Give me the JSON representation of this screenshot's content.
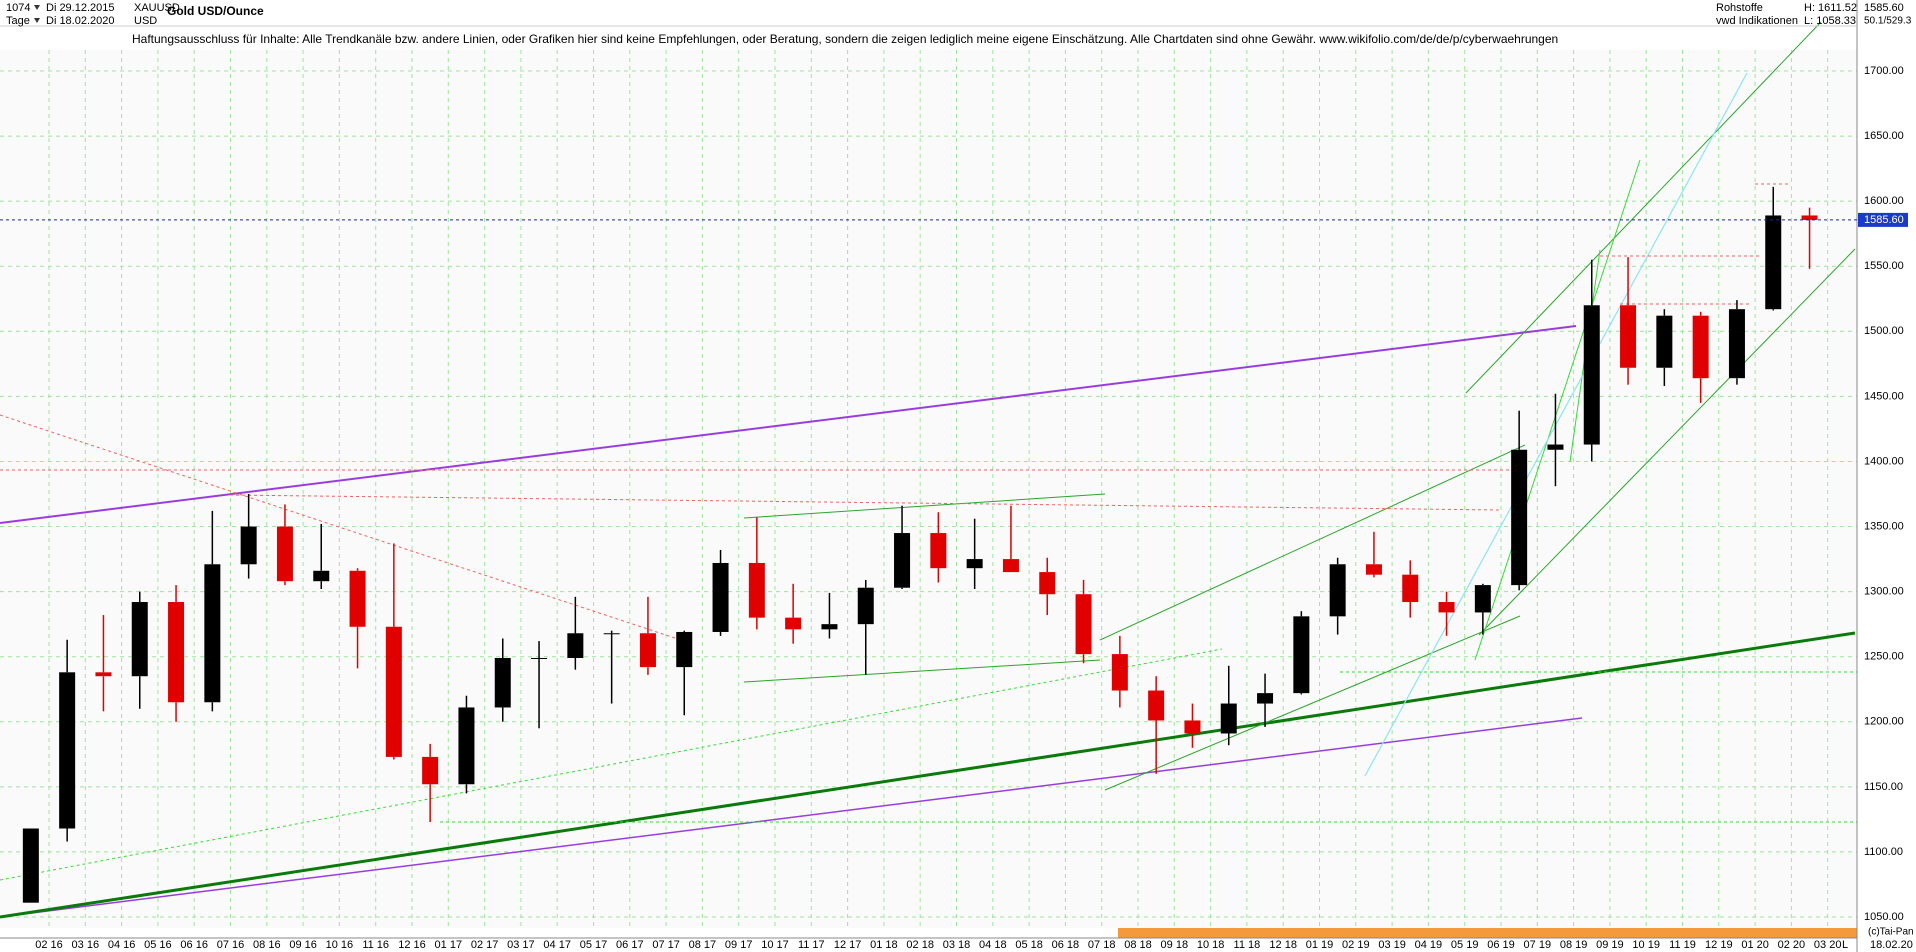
{
  "header": {
    "bars": "1074",
    "start": "Di 29.12.2015",
    "symbol": "XAUUSD",
    "period": "Tage",
    "end": "Di 18.02.2020",
    "currency": "USD",
    "group": "Rohstoffe",
    "source": "vwd Indikationen",
    "high": "H:  1611.52",
    "low": "L:  1058.33",
    "right_top": "1585.60",
    "right_sub": "50.1/529.3"
  },
  "footer": {
    "copyright": "(c)Tai-Pan",
    "date": "18.02.20",
    "mode": "L"
  },
  "chart_data": {
    "type": "candlestick",
    "title": "Gold USD/Ounce",
    "subtitle": "Haftungsausschluss für Inhalte: Alle Trendkanäle bzw. andere Linien, oder Grafiken hier sind keine Empfehlungen, oder Beratung, sondern die zeigen lediglich meine eigene Einschätzung. Alle Chartdaten sind ohne Gewähr.  www.wikifolio.com/de/de/p/cyberwaehrungen",
    "categories": [
      "02 16",
      "03 16",
      "04 16",
      "05 16",
      "06 16",
      "07 16",
      "08 16",
      "09 16",
      "10 16",
      "11 16",
      "12 16",
      "01 17",
      "02 17",
      "03 17",
      "04 17",
      "05 17",
      "06 17",
      "07 17",
      "08 17",
      "09 17",
      "10 17",
      "11 17",
      "12 17",
      "01 18",
      "02 18",
      "03 18",
      "04 18",
      "05 18",
      "06 18",
      "07 18",
      "08 18",
      "09 18",
      "10 18",
      "11 18",
      "12 18",
      "01 19",
      "02 19",
      "03 19",
      "04 19",
      "05 19",
      "06 19",
      "07 19",
      "08 19",
      "09 19",
      "10 19",
      "11 19",
      "12 19",
      "01 20",
      "02 20",
      "03 20"
    ],
    "open": [
      1061,
      1118,
      1238,
      1235,
      1292,
      1215,
      1321,
      1350,
      1308,
      1316,
      1273,
      1173,
      1152,
      1211,
      1249,
      1249,
      1268,
      1268,
      1242,
      1269,
      1322,
      1280,
      1271,
      1275,
      1303,
      1345,
      1318,
      1325,
      1315,
      1298,
      1252,
      1224,
      1201,
      1191,
      1214,
      1222,
      1281,
      1321,
      1313,
      1292,
      1284,
      1305,
      1409,
      1413,
      1520,
      1472,
      1512,
      1464,
      1517,
      1589
    ],
    "high": [
      1118,
      1263,
      1282,
      1300,
      1305,
      1362,
      1375,
      1367,
      1352,
      1318,
      1337,
      1183,
      1220,
      1264,
      1262,
      1296,
      1270,
      1296,
      1270,
      1332,
      1357,
      1306,
      1299,
      1309,
      1366,
      1361,
      1356,
      1366,
      1326,
      1309,
      1266,
      1235,
      1214,
      1243,
      1237,
      1285,
      1326,
      1346,
      1324,
      1300,
      1306,
      1439,
      1452,
      1555,
      1557,
      1517,
      1515,
      1524,
      1611,
      1595
    ],
    "low": [
      1061,
      1108,
      1208,
      1210,
      1200,
      1208,
      1310,
      1305,
      1302,
      1241,
      1171,
      1123,
      1145,
      1200,
      1195,
      1240,
      1214,
      1236,
      1205,
      1266,
      1271,
      1260,
      1264,
      1236,
      1302,
      1307,
      1302,
      1315,
      1282,
      1245,
      1211,
      1160,
      1180,
      1182,
      1196,
      1221,
      1267,
      1311,
      1280,
      1266,
      1267,
      1301,
      1381,
      1400,
      1459,
      1458,
      1445,
      1459,
      1516,
      1548
    ],
    "close": [
      1118,
      1238,
      1235,
      1292,
      1215,
      1321,
      1350,
      1308,
      1316,
      1273,
      1173,
      1152,
      1211,
      1249,
      1249,
      1268,
      1268,
      1242,
      1269,
      1322,
      1280,
      1271,
      1275,
      1303,
      1345,
      1318,
      1325,
      1315,
      1298,
      1252,
      1224,
      1201,
      1191,
      1214,
      1222,
      1281,
      1321,
      1313,
      1292,
      1284,
      1305,
      1409,
      1413,
      1520,
      1472,
      1512,
      1464,
      1517,
      1589,
      1585.6
    ],
    "up_color": "#000000",
    "down_color": "#e00000",
    "ylim": [
      1050,
      1700
    ],
    "yticks": [
      {
        "value": 1050,
        "label": "1050.00"
      },
      {
        "value": 1100,
        "label": "1100.00"
      },
      {
        "value": 1150,
        "label": "1150.00"
      },
      {
        "value": 1200,
        "label": "1200.00"
      },
      {
        "value": 1250,
        "label": "1250.00"
      },
      {
        "value": 1300,
        "label": "1300.00"
      },
      {
        "value": 1350,
        "label": "1350.00"
      },
      {
        "value": 1400,
        "label": "1400.00"
      },
      {
        "value": 1450,
        "label": "1450.00"
      },
      {
        "value": 1500,
        "label": "1500.00"
      },
      {
        "value": 1550,
        "label": "1550.00"
      },
      {
        "value": 1600,
        "label": "1600.00"
      },
      {
        "value": 1650,
        "label": "1650.00"
      },
      {
        "value": 1700,
        "label": "1700.00"
      }
    ],
    "price_line": {
      "value": 1585.6,
      "label": "1585.60"
    },
    "grid": true
  }
}
